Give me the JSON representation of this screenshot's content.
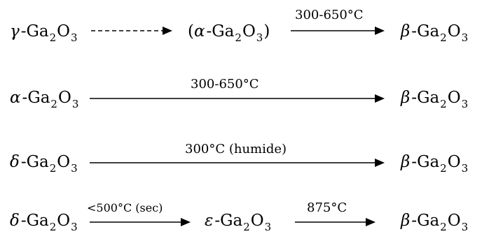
{
  "reactions": [
    {
      "start": {
        "greek": "γ",
        "formula": "-Ga",
        "sub1": "2",
        "mid": "O",
        "sub2": "3"
      },
      "intermediate": {
        "open": "(",
        "greek": "α",
        "formula": "-Ga",
        "sub1": "2",
        "mid": "O",
        "sub2": "3",
        "close": ")"
      },
      "condition": "300-650°C",
      "product": {
        "greek": "β",
        "formula": "-Ga",
        "sub1": "2",
        "mid": "O",
        "sub2": "3"
      }
    },
    {
      "start": {
        "greek": "α",
        "formula": "-Ga",
        "sub1": "2",
        "mid": "O",
        "sub2": "3"
      },
      "condition": "300-650°C",
      "product": {
        "greek": "β",
        "formula": "-Ga",
        "sub1": "2",
        "mid": "O",
        "sub2": "3"
      }
    },
    {
      "start": {
        "greek": "δ",
        "formula": "-Ga",
        "sub1": "2",
        "mid": "O",
        "sub2": "3"
      },
      "condition": "300°C (humide)",
      "product": {
        "greek": "β",
        "formula": "-Ga",
        "sub1": "2",
        "mid": "O",
        "sub2": "3"
      }
    },
    {
      "start": {
        "greek": "δ",
        "formula": "-Ga",
        "sub1": "2",
        "mid": "O",
        "sub2": "3"
      },
      "condition1": "<500°C (sec)",
      "intermediate": {
        "greek": "ε",
        "formula": "-Ga",
        "sub1": "2",
        "mid": "O",
        "sub2": "3"
      },
      "condition2": "875°C",
      "product": {
        "greek": "β",
        "formula": "-Ga",
        "sub1": "2",
        "mid": "O",
        "sub2": "3"
      }
    }
  ]
}
